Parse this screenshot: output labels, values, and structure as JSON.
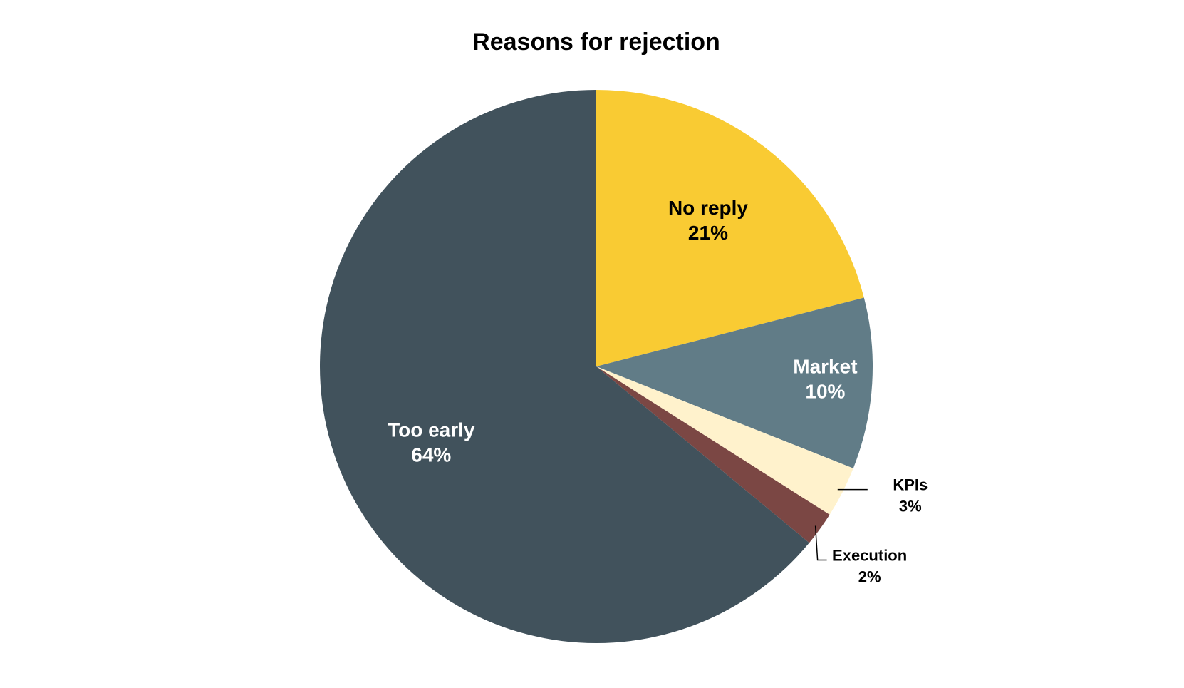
{
  "chart_data": {
    "type": "pie",
    "title": "Reasons for rejection",
    "categories": [
      "No reply",
      "Market",
      "KPIs",
      "Execution",
      "Too early"
    ],
    "values": [
      21,
      10,
      3,
      2,
      64
    ],
    "value_labels": [
      "21%",
      "10%",
      "3%",
      "2%",
      "64%"
    ],
    "colors": [
      "#f9cb33",
      "#617c87",
      "#fff2cc",
      "#7b4744",
      "#41525c"
    ]
  }
}
